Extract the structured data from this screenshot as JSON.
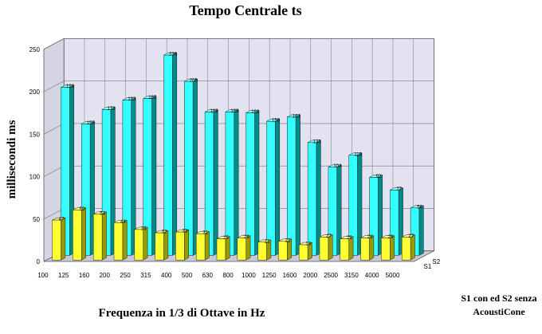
{
  "chart_data": {
    "type": "bar",
    "title": "Tempo Centrale ts",
    "xlabel": "Frequenza in 1/3 di Ottave in Hz",
    "ylabel": "millisecondi ms",
    "ylim": [
      0,
      250
    ],
    "yticks": [
      "0",
      "50",
      "100",
      "150",
      "200",
      "250"
    ],
    "categories": [
      "100",
      "125",
      "160",
      "200",
      "250",
      "315",
      "400",
      "500",
      "630",
      "800",
      "1000",
      "1250",
      "1600",
      "2000",
      "2500",
      "3150",
      "4000",
      "5000"
    ],
    "series": [
      {
        "name": "S1",
        "values": [
          47,
          59,
          54,
          44,
          36,
          32,
          33,
          31,
          25,
          26,
          21,
          22,
          18,
          27,
          25,
          26,
          26,
          27
        ],
        "labels": [
          "47",
          "59",
          "54",
          "44",
          "36",
          "32",
          "33",
          "31",
          "25",
          "26",
          "21",
          "22",
          "18",
          "27",
          "25",
          "26",
          "26",
          "27"
        ]
      },
      {
        "name": "S2",
        "values": [
          198,
          155,
          172,
          183,
          185,
          236,
          205,
          169,
          169,
          168,
          158,
          163,
          133,
          104,
          118,
          92,
          77,
          56
        ],
        "labels": [
          "198",
          "155",
          "172",
          "183",
          "185",
          "236",
          "205",
          "169",
          "169",
          "168",
          "158",
          "163",
          "133",
          "104",
          "118",
          "92",
          "77",
          "56"
        ]
      }
    ],
    "legend": {
      "position": "bottom-right",
      "text": "S1 con ed S2 senza AcoustiCone",
      "line1": "S1 con ed S2 senza",
      "line2": "AcoustiCone"
    },
    "grid": true,
    "colors": {
      "S1_front": "#ffff33",
      "S1_top": "#ffff99",
      "S1_side": "#999900",
      "S2_front": "#33ffff",
      "S2_top": "#99ffff",
      "S2_side": "#008b8b",
      "back_wall": "#e2e2f0",
      "side_wall": "#d4d4e2",
      "floor": "#c8c8d8",
      "grid": "#777777"
    }
  }
}
